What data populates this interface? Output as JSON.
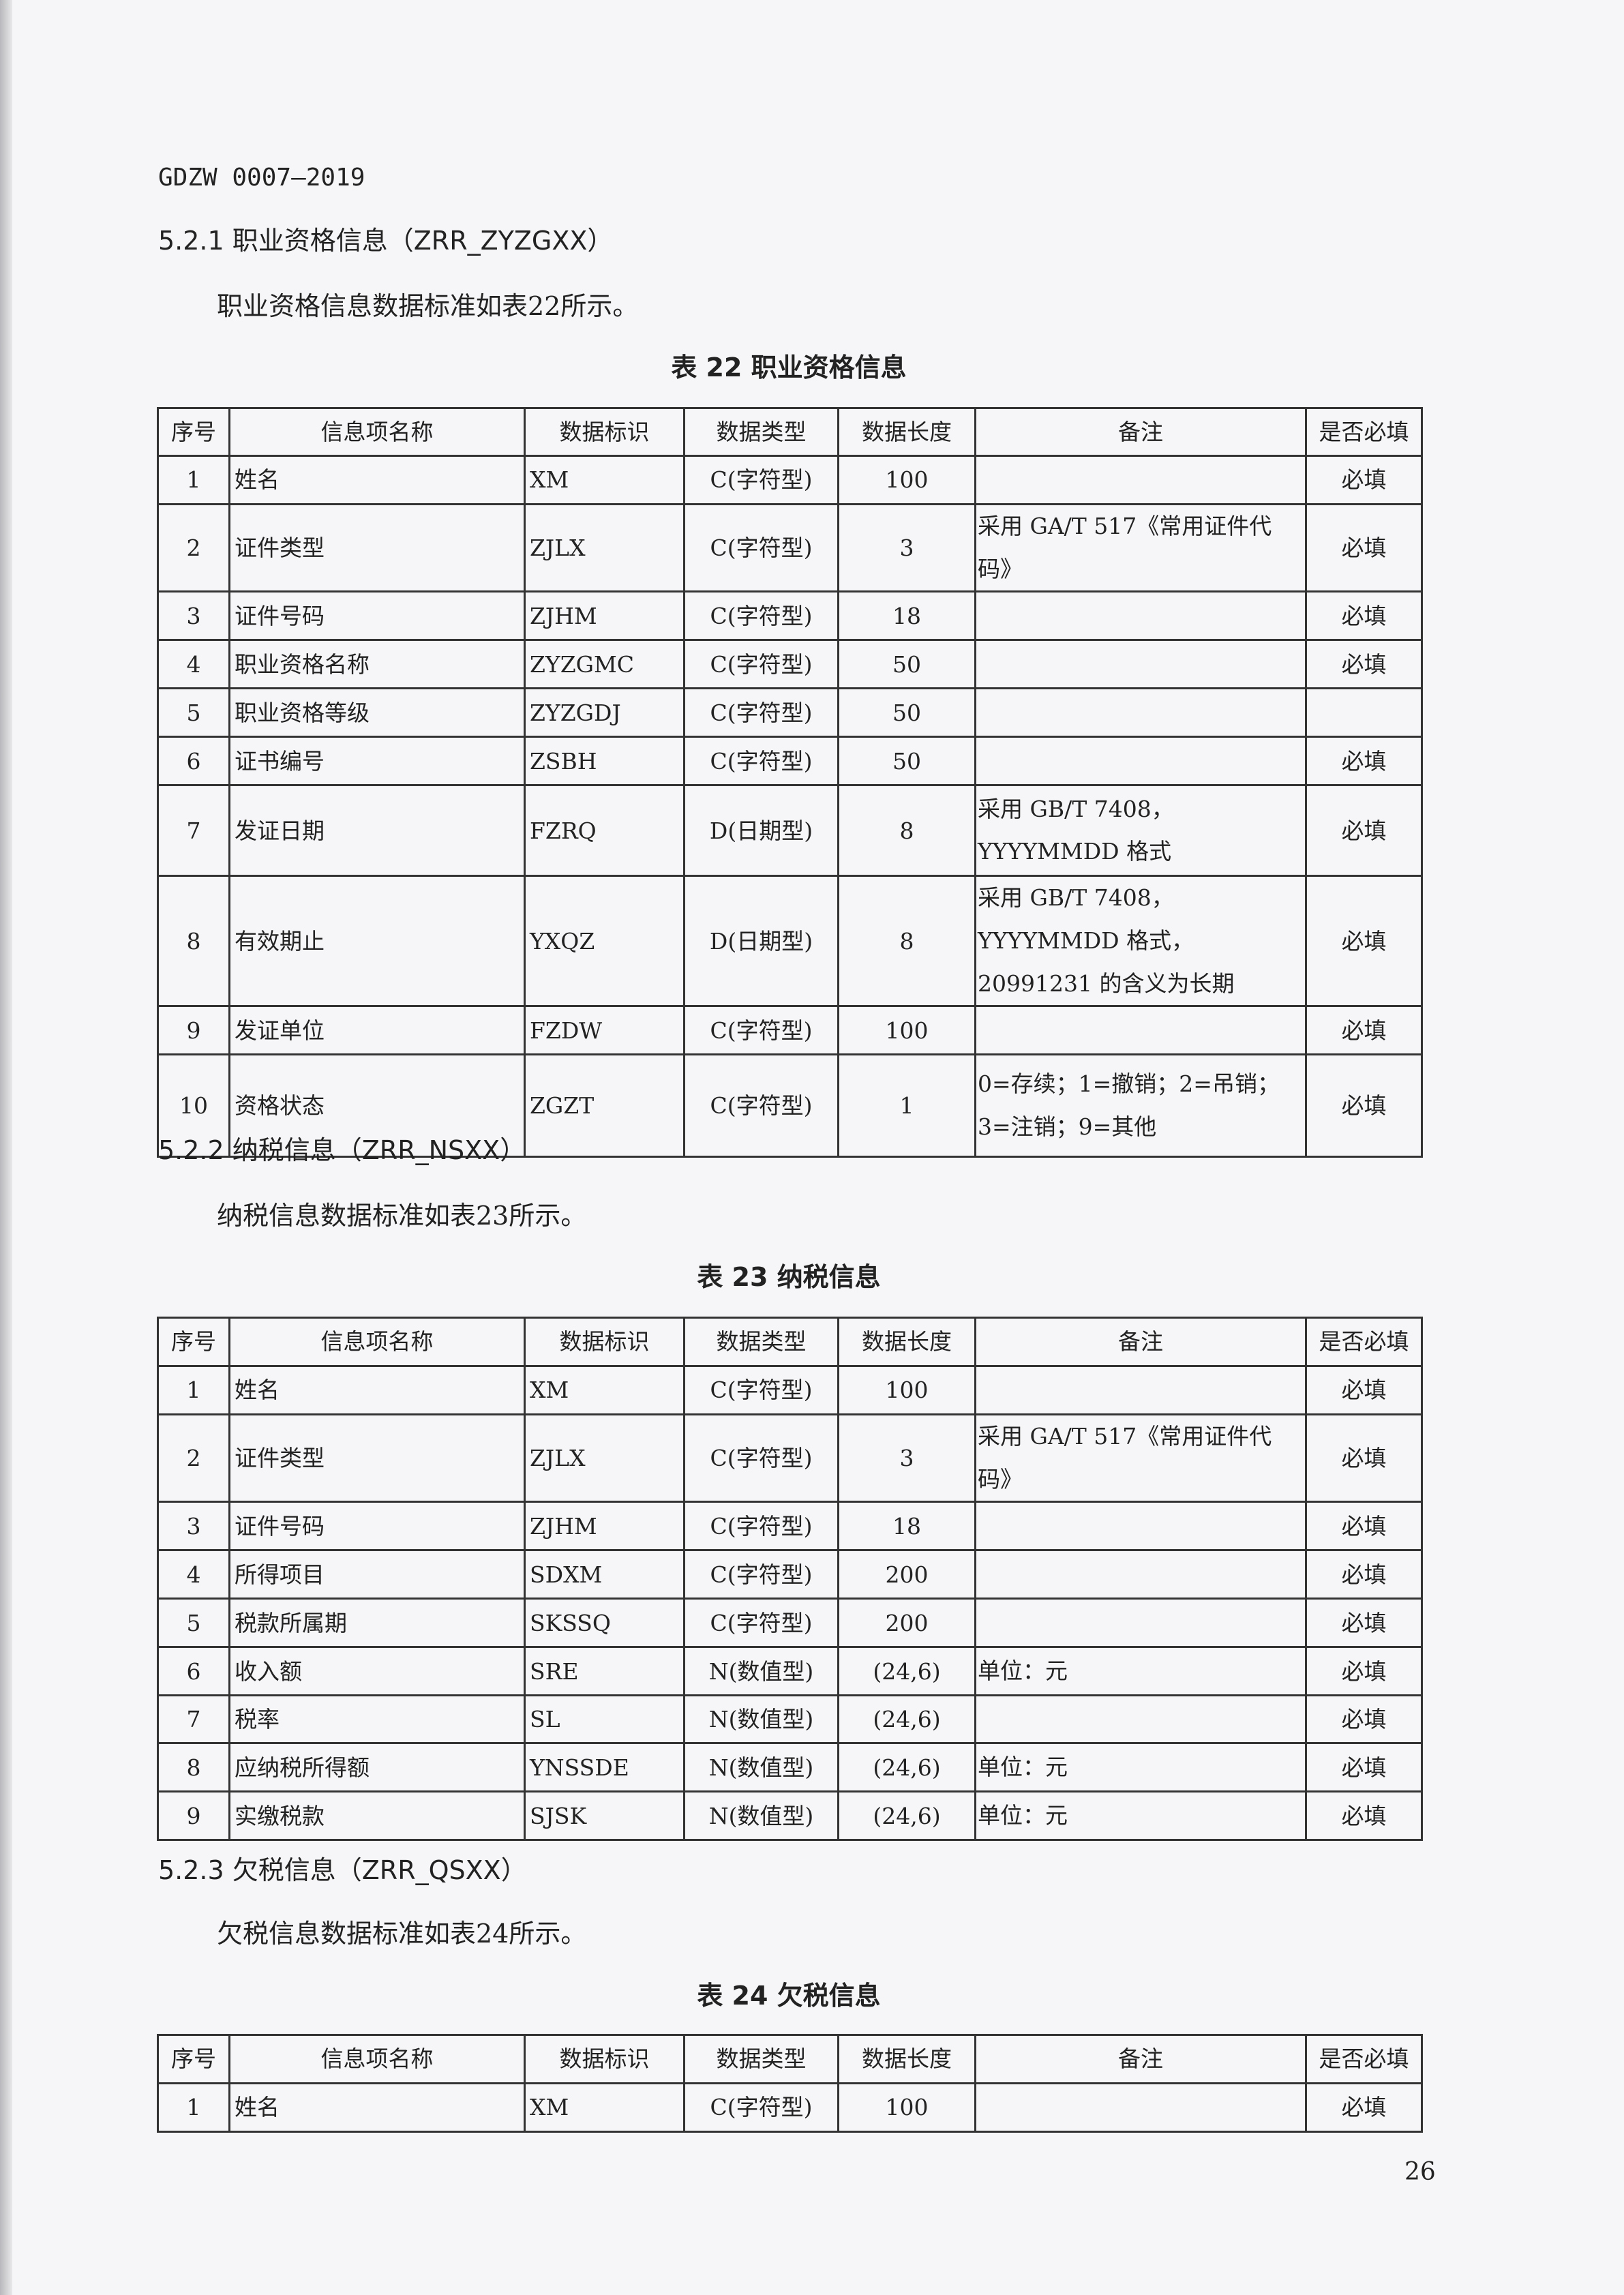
{
  "header": "GDZW 0007—2019",
  "columns": [
    "序号",
    "信息项名称",
    "数据标识",
    "数据类型",
    "数据长度",
    "备注",
    "是否必填"
  ],
  "sections": [
    {
      "heading": "5.2.1  职业资格信息（ZRR_ZYZGXX）",
      "intro": "职业资格信息数据标准如表22所示。",
      "caption": "表 22  职业资格信息",
      "rows": [
        [
          "1",
          "姓名",
          "XM",
          "C(字符型)",
          "100",
          "",
          "必填"
        ],
        [
          "2",
          "证件类型",
          "ZJLX",
          "C(字符型)",
          "3",
          "采用 GA/T 517《常用证件代码》",
          "必填"
        ],
        [
          "3",
          "证件号码",
          "ZJHM",
          "C(字符型)",
          "18",
          "",
          "必填"
        ],
        [
          "4",
          "职业资格名称",
          "ZYZGMC",
          "C(字符型)",
          "50",
          "",
          "必填"
        ],
        [
          "5",
          "职业资格等级",
          "ZYZGDJ",
          "C(字符型)",
          "50",
          "",
          ""
        ],
        [
          "6",
          "证书编号",
          "ZSBH",
          "C(字符型)",
          "50",
          "",
          "必填"
        ],
        [
          "7",
          "发证日期",
          "FZRQ",
          "D(日期型)",
          "8",
          "采用 GB/T 7408，YYYYMMDD 格式",
          "必填"
        ],
        [
          "8",
          "有效期止",
          "YXQZ",
          "D(日期型)",
          "8",
          "采用 GB/T 7408，YYYYMMDD 格式，20991231 的含义为长期",
          "必填"
        ],
        [
          "9",
          "发证单位",
          "FZDW",
          "C(字符型)",
          "100",
          "",
          "必填"
        ],
        [
          "10",
          "资格状态",
          "ZGZT",
          "C(字符型)",
          "1",
          "0=存续；1=撤销；2=吊销；3=注销；9=其他",
          "必填"
        ]
      ]
    },
    {
      "heading": "5.2.2  纳税信息（ZRR_NSXX）",
      "intro": "纳税信息数据标准如表23所示。",
      "caption": "表 23  纳税信息",
      "rows": [
        [
          "1",
          "姓名",
          "XM",
          "C(字符型)",
          "100",
          "",
          "必填"
        ],
        [
          "2",
          "证件类型",
          "ZJLX",
          "C(字符型)",
          "3",
          "采用 GA/T 517《常用证件代码》",
          "必填"
        ],
        [
          "3",
          "证件号码",
          "ZJHM",
          "C(字符型)",
          "18",
          "",
          "必填"
        ],
        [
          "4",
          "所得项目",
          "SDXM",
          "C(字符型)",
          "200",
          "",
          "必填"
        ],
        [
          "5",
          "税款所属期",
          "SKSSQ",
          "C(字符型)",
          "200",
          "",
          "必填"
        ],
        [
          "6",
          "收入额",
          "SRE",
          "N(数值型)",
          "(24,6)",
          "单位：元",
          "必填"
        ],
        [
          "7",
          "税率",
          "SL",
          "N(数值型)",
          "(24,6)",
          "",
          "必填"
        ],
        [
          "8",
          "应纳税所得额",
          "YNSSDE",
          "N(数值型)",
          "(24,6)",
          "单位：元",
          "必填"
        ],
        [
          "9",
          "实缴税款",
          "SJSK",
          "N(数值型)",
          "(24,6)",
          "单位：元",
          "必填"
        ]
      ]
    },
    {
      "heading": "5.2.3  欠税信息（ZRR_QSXX）",
      "intro": "欠税信息数据标准如表24所示。",
      "caption": "表 24  欠税信息",
      "rows": [
        [
          "1",
          "姓名",
          "XM",
          "C(字符型)",
          "100",
          "",
          "必填"
        ]
      ]
    }
  ],
  "page_number": "26"
}
